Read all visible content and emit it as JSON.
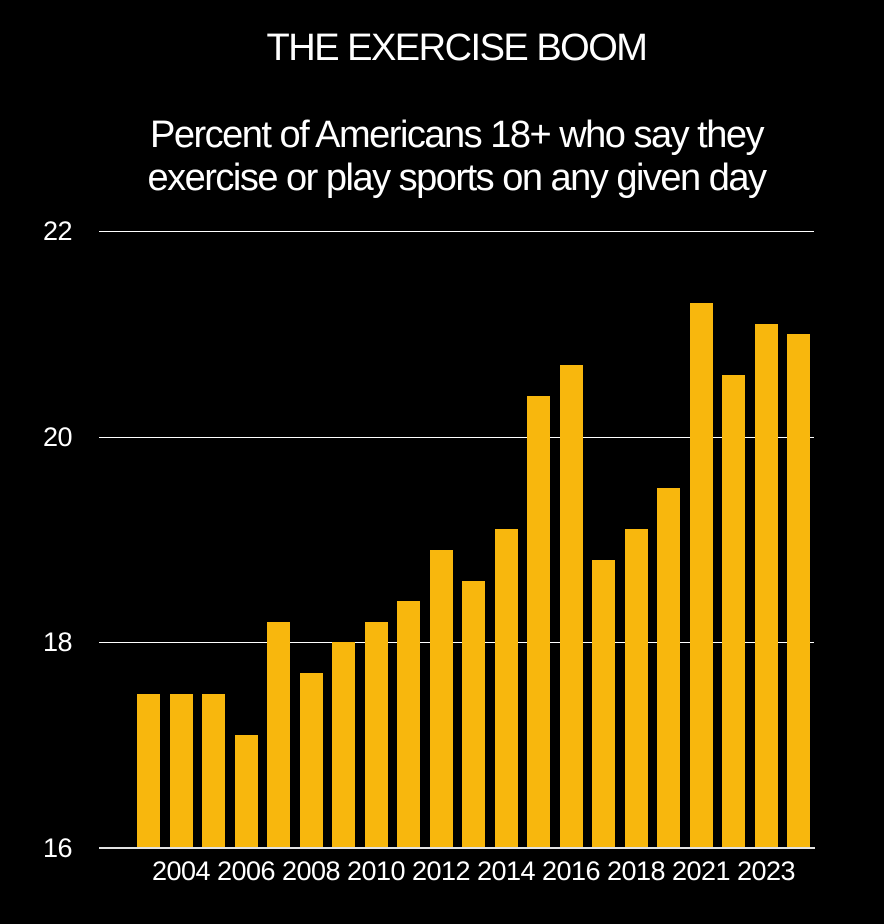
{
  "chart_data": {
    "type": "bar",
    "title": "THE EXERCISE BOOM",
    "subtitle_line1": "Percent of Americans 18+ who say they",
    "subtitle_line2": "exercise or play sports on any given day",
    "categories": [
      2003,
      2004,
      2005,
      2006,
      2007,
      2008,
      2009,
      2010,
      2011,
      2012,
      2013,
      2014,
      2015,
      2016,
      2017,
      2018,
      2019,
      2021,
      2022,
      2023,
      2024
    ],
    "values": [
      17.5,
      17.5,
      17.5,
      17.1,
      18.2,
      17.7,
      18.0,
      18.2,
      18.4,
      18.9,
      18.6,
      19.1,
      20.4,
      20.7,
      18.8,
      19.1,
      19.5,
      21.3,
      20.6,
      21.1,
      21.0
    ],
    "x_tick_labels": [
      "2004",
      "2006",
      "2008",
      "2010",
      "2012",
      "2014",
      "2016",
      "2018",
      "2021",
      "2023"
    ],
    "y_ticks": [
      16,
      18,
      20,
      22
    ],
    "ylim": [
      16,
      22
    ],
    "grid": true,
    "legend_position": "none",
    "xlabel": "",
    "ylabel": "",
    "bar_color": "#F8B70D",
    "background_color": "#000000",
    "text_color": "#FFFFFF",
    "gridline_color": "#FFFFFF",
    "axis_line_color": "#E2E2E2"
  }
}
